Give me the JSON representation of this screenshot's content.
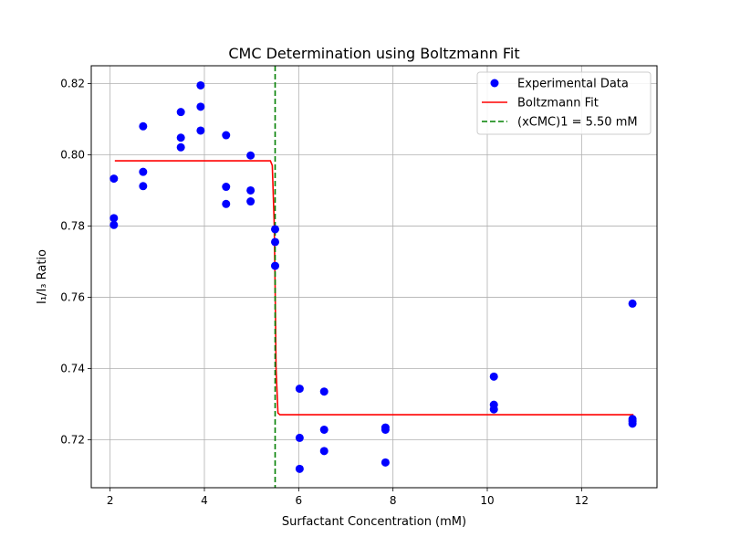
{
  "chart_data": {
    "type": "scatter",
    "title": "CMC Determination using Boltzmann Fit",
    "xlabel": "Surfactant Concentration (mM)",
    "ylabel": "I₁/I₃ Ratio",
    "xlim": [
      1.6,
      13.6
    ],
    "ylim": [
      0.7065,
      0.825
    ],
    "xticks": [
      2,
      4,
      6,
      8,
      10,
      12
    ],
    "yticks": [
      0.72,
      0.74,
      0.76,
      0.78,
      0.8,
      0.82
    ],
    "xtick_labels": [
      "2",
      "4",
      "6",
      "8",
      "10",
      "12"
    ],
    "ytick_labels": [
      "0.72",
      "0.74",
      "0.76",
      "0.78",
      "0.80",
      "0.82"
    ],
    "grid": true,
    "legend_position": "top-right",
    "series": [
      {
        "name": "Experimental Data",
        "kind": "scatter",
        "color": "#0000ff",
        "points": [
          [
            2.08,
            0.7933
          ],
          [
            2.08,
            0.7822
          ],
          [
            2.08,
            0.7803
          ],
          [
            2.7,
            0.808
          ],
          [
            2.7,
            0.7952
          ],
          [
            2.7,
            0.7912
          ],
          [
            3.5,
            0.812
          ],
          [
            3.5,
            0.8048
          ],
          [
            3.5,
            0.8021
          ],
          [
            3.92,
            0.8195
          ],
          [
            3.92,
            0.8135
          ],
          [
            3.92,
            0.8068
          ],
          [
            4.46,
            0.8055
          ],
          [
            4.46,
            0.791
          ],
          [
            4.46,
            0.7862
          ],
          [
            4.98,
            0.7998
          ],
          [
            4.98,
            0.79
          ],
          [
            4.98,
            0.7869
          ],
          [
            5.5,
            0.7791
          ],
          [
            5.5,
            0.7755
          ],
          [
            5.5,
            0.7688
          ],
          [
            6.02,
            0.7343
          ],
          [
            6.02,
            0.7205
          ],
          [
            6.02,
            0.7118
          ],
          [
            6.54,
            0.7335
          ],
          [
            6.54,
            0.7228
          ],
          [
            6.54,
            0.7168
          ],
          [
            7.84,
            0.7234
          ],
          [
            7.84,
            0.7228
          ],
          [
            7.84,
            0.7136
          ],
          [
            10.14,
            0.7377
          ],
          [
            10.14,
            0.7298
          ],
          [
            10.14,
            0.7285
          ],
          [
            13.08,
            0.7582
          ],
          [
            13.08,
            0.7258
          ],
          [
            13.08,
            0.7252
          ],
          [
            13.08,
            0.7245
          ]
        ]
      },
      {
        "name": "Boltzmann Fit",
        "kind": "line",
        "color": "#ff0000",
        "points": [
          [
            2.1,
            0.7983
          ],
          [
            5.4,
            0.7983
          ],
          [
            5.44,
            0.797
          ],
          [
            5.48,
            0.781
          ],
          [
            5.5,
            0.763
          ],
          [
            5.52,
            0.74
          ],
          [
            5.56,
            0.7275
          ],
          [
            5.6,
            0.727
          ],
          [
            13.1,
            0.727
          ]
        ]
      },
      {
        "name": "(xCMC)1 = 5.50 mM",
        "kind": "vline",
        "color": "#008000",
        "x": 5.5
      }
    ]
  }
}
